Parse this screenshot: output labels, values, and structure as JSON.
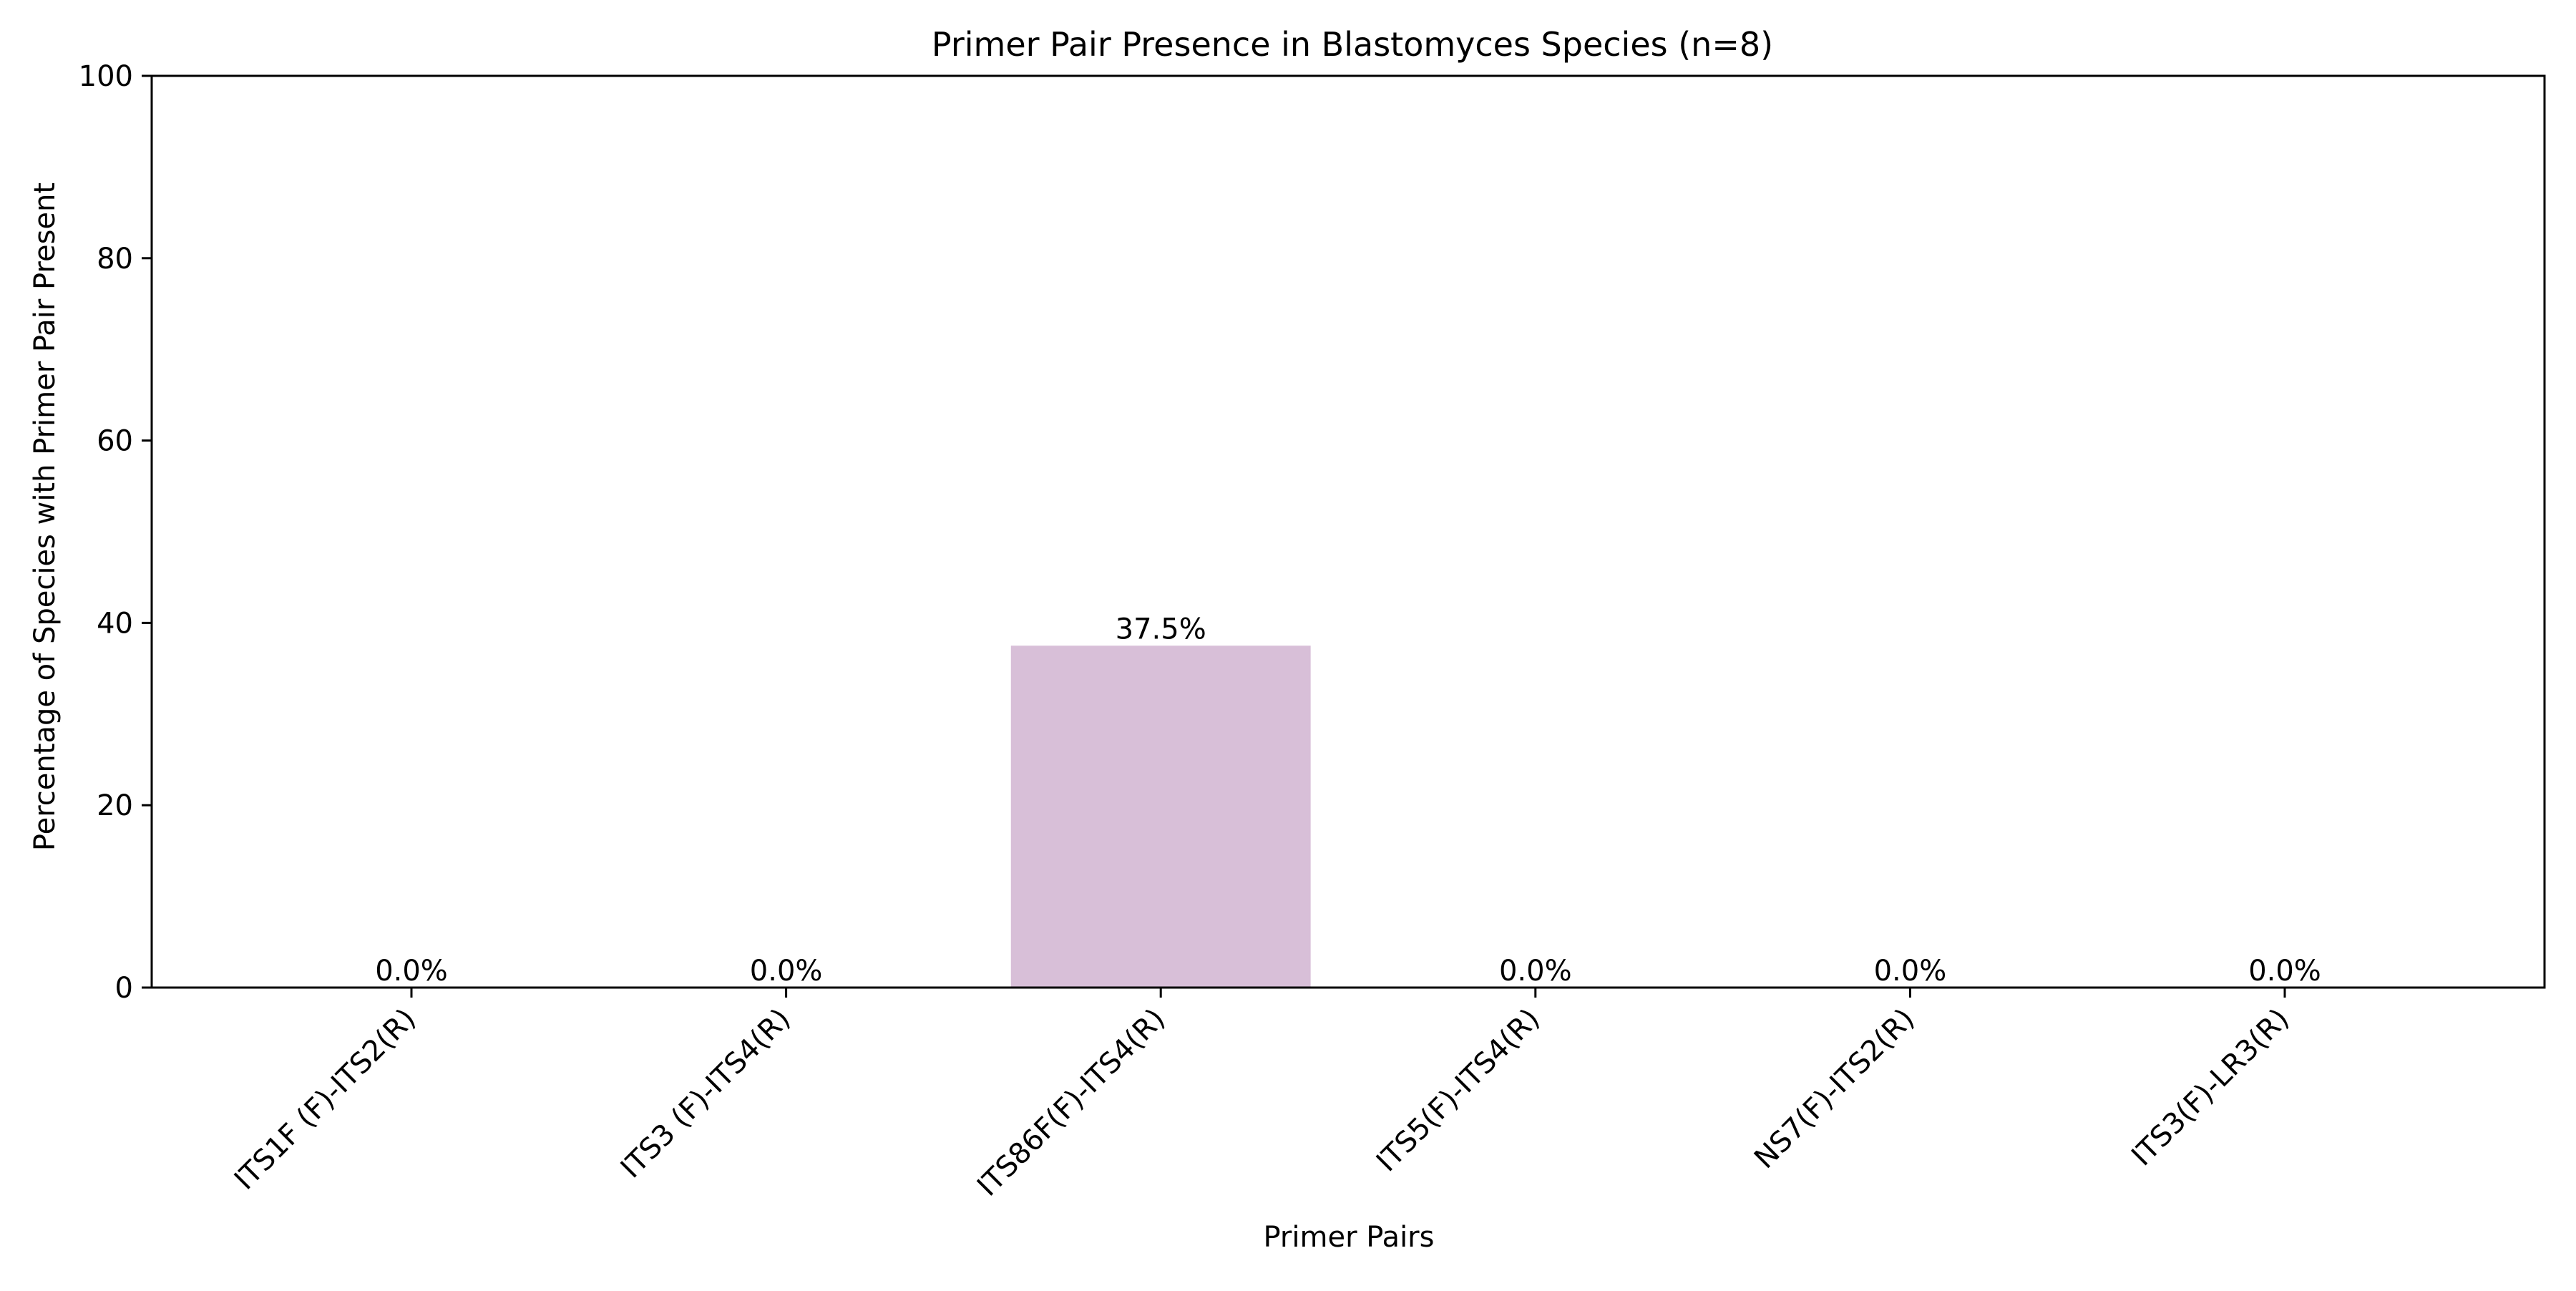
{
  "chart_data": {
    "type": "bar",
    "title": "Primer Pair Presence in Blastomyces Species (n=8)",
    "xlabel": "Primer Pairs",
    "ylabel": "Percentage of Species with Primer Pair Present",
    "categories": [
      "ITS1F (F)-ITS2(R)",
      "ITS3 (F)-ITS4(R)",
      "ITS86F(F)-ITS4(R)",
      "ITS5(F)-ITS4(R)",
      "NS7(F)-ITS2(R)",
      "ITS3(F)-LR3(R)"
    ],
    "values": [
      0.0,
      0.0,
      37.5,
      0.0,
      0.0,
      0.0
    ],
    "data_labels": [
      "0.0%",
      "0.0%",
      "37.5%",
      "0.0%",
      "0.0%",
      "0.0%"
    ],
    "ylim": [
      0,
      100
    ],
    "yticks": [
      0,
      20,
      40,
      60,
      80,
      100
    ],
    "bar_color": "#d8bfd8",
    "grid": false,
    "legend": "none"
  }
}
